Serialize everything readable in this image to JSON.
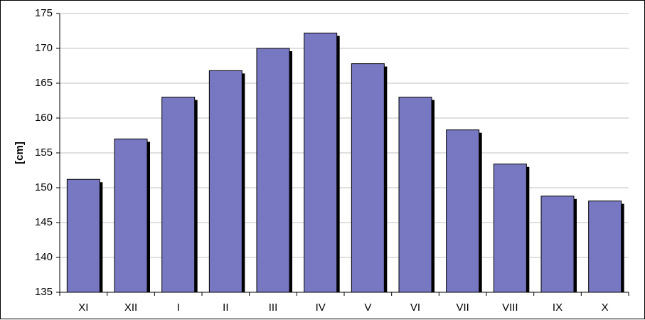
{
  "chart_data": {
    "type": "bar",
    "title": "",
    "xlabel": "",
    "ylabel": "[cm]",
    "categories": [
      "XI",
      "XII",
      "I",
      "II",
      "III",
      "IV",
      "V",
      "VI",
      "VII",
      "VIII",
      "IX",
      "X"
    ],
    "values": [
      151.2,
      157.0,
      163.0,
      166.8,
      170.0,
      172.2,
      167.8,
      163.0,
      158.3,
      153.4,
      148.8,
      148.1
    ],
    "ylim": [
      135,
      175
    ],
    "yticks": [
      135,
      140,
      145,
      150,
      155,
      160,
      165,
      170,
      175
    ],
    "grid": true,
    "legend": "none",
    "colors": {
      "bar_fill": "#7777c2",
      "bar_shadow": "#000000",
      "bar_outline": "#000000",
      "gridline": "#c0c0c0",
      "axis": "#000000"
    }
  }
}
